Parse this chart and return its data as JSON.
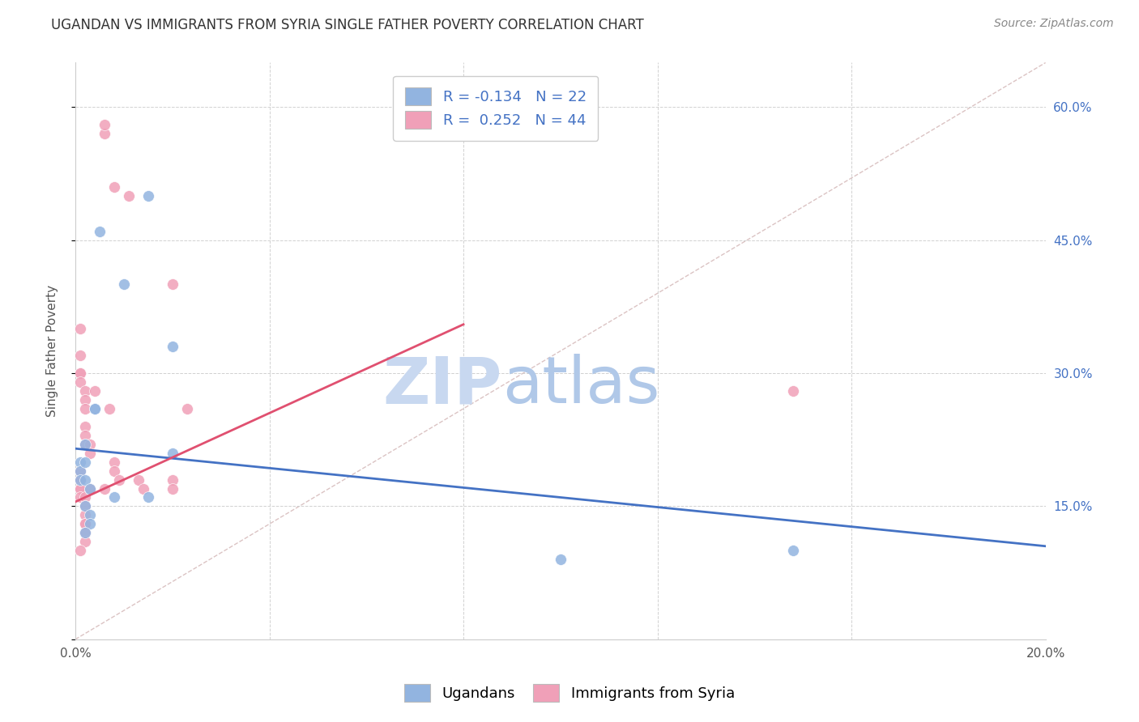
{
  "title": "UGANDAN VS IMMIGRANTS FROM SYRIA SINGLE FATHER POVERTY CORRELATION CHART",
  "source": "Source: ZipAtlas.com",
  "ylabel": "Single Father Poverty",
  "xlim": [
    0.0,
    0.2
  ],
  "ylim": [
    0.0,
    0.65
  ],
  "xticks": [
    0.0,
    0.04,
    0.08,
    0.12,
    0.16,
    0.2
  ],
  "yticks": [
    0.0,
    0.15,
    0.3,
    0.45,
    0.6
  ],
  "xticklabels": [
    "0.0%",
    "",
    "",
    "",
    "",
    "20.0%"
  ],
  "yticklabels_right": [
    "",
    "15.0%",
    "30.0%",
    "45.0%",
    "60.0%"
  ],
  "legend_labels": [
    "Ugandans",
    "Immigrants from Syria"
  ],
  "ugandan_R": -0.134,
  "ugandan_N": 22,
  "syria_R": 0.252,
  "syria_N": 44,
  "ugandan_color": "#92b4e0",
  "syria_color": "#f0a0b8",
  "ugandan_line_color": "#4472c4",
  "syria_line_color": "#e05070",
  "diagonal_color": "#ccaaaa",
  "background_color": "#ffffff",
  "ugandan_points_x": [
    0.005,
    0.01,
    0.015,
    0.02,
    0.02,
    0.001,
    0.001,
    0.001,
    0.002,
    0.002,
    0.002,
    0.002,
    0.003,
    0.003,
    0.003,
    0.004,
    0.004,
    0.008,
    0.015,
    0.1,
    0.148,
    0.002
  ],
  "ugandan_points_y": [
    0.46,
    0.4,
    0.5,
    0.33,
    0.21,
    0.2,
    0.19,
    0.18,
    0.22,
    0.2,
    0.18,
    0.15,
    0.14,
    0.13,
    0.17,
    0.26,
    0.26,
    0.16,
    0.16,
    0.09,
    0.1,
    0.12
  ],
  "syria_points_x": [
    0.006,
    0.006,
    0.008,
    0.011,
    0.02,
    0.001,
    0.001,
    0.001,
    0.001,
    0.001,
    0.002,
    0.002,
    0.002,
    0.002,
    0.002,
    0.002,
    0.003,
    0.003,
    0.004,
    0.007,
    0.008,
    0.008,
    0.009,
    0.013,
    0.014,
    0.02,
    0.02,
    0.023,
    0.001,
    0.001,
    0.001,
    0.001,
    0.001,
    0.002,
    0.002,
    0.002,
    0.002,
    0.002,
    0.002,
    0.002,
    0.003,
    0.006,
    0.148,
    0.001
  ],
  "syria_points_y": [
    0.57,
    0.58,
    0.51,
    0.5,
    0.4,
    0.35,
    0.32,
    0.3,
    0.3,
    0.29,
    0.28,
    0.27,
    0.26,
    0.24,
    0.23,
    0.22,
    0.22,
    0.21,
    0.28,
    0.26,
    0.2,
    0.19,
    0.18,
    0.18,
    0.17,
    0.18,
    0.17,
    0.26,
    0.19,
    0.18,
    0.17,
    0.17,
    0.16,
    0.16,
    0.15,
    0.14,
    0.13,
    0.13,
    0.12,
    0.11,
    0.17,
    0.17,
    0.28,
    0.1
  ],
  "ugandan_line_x": [
    0.0,
    0.2
  ],
  "ugandan_line_y": [
    0.215,
    0.105
  ],
  "syria_line_x": [
    0.0,
    0.08
  ],
  "syria_line_y": [
    0.155,
    0.355
  ],
  "diagonal_line_x": [
    0.0,
    0.2
  ],
  "diagonal_line_y": [
    0.0,
    0.65
  ],
  "watermark_zip": "ZIP",
  "watermark_atlas": "atlas",
  "watermark_color_zip": "#c8d8f0",
  "watermark_color_atlas": "#b0c8e8",
  "title_fontsize": 12,
  "axis_label_fontsize": 11,
  "tick_fontsize": 11,
  "legend_fontsize": 13,
  "marker_size": 100
}
